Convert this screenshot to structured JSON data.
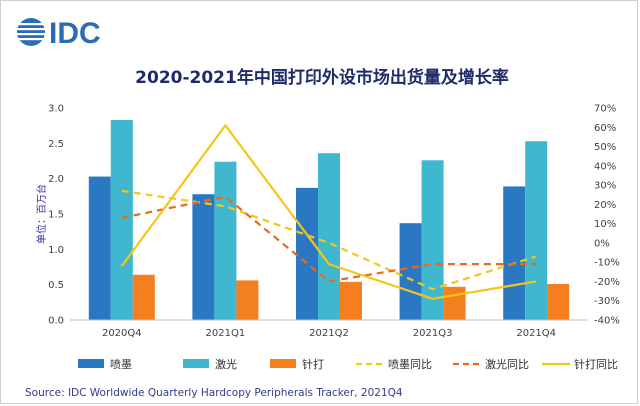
{
  "logo": {
    "text": "IDC"
  },
  "chart_data": {
    "type": "bar",
    "title": "2020-2021年中国打印外设市场出货量及增长率",
    "ylabel": "单位：百万台",
    "categories": [
      "2020Q4",
      "2021Q1",
      "2021Q2",
      "2021Q3",
      "2021Q4"
    ],
    "ylim": [
      0,
      3.0
    ],
    "y_ticks": [
      "0.0",
      "0.5",
      "1.0",
      "1.5",
      "2.0",
      "2.5",
      "3.0"
    ],
    "y2lim": [
      -40,
      70
    ],
    "y2_ticks": [
      "-40%",
      "-30%",
      "-20%",
      "-10%",
      "0%",
      "10%",
      "20%",
      "30%",
      "40%",
      "50%",
      "60%",
      "70%"
    ],
    "bar_series": [
      {
        "name": "喷墨",
        "color": "#2b78c2",
        "values": [
          2.03,
          1.78,
          1.87,
          1.37,
          1.89
        ]
      },
      {
        "name": "激光",
        "color": "#3fb8cf",
        "values": [
          2.83,
          2.24,
          2.36,
          2.26,
          2.53
        ]
      },
      {
        "name": "针打",
        "color": "#f47f1f",
        "values": [
          0.64,
          0.56,
          0.54,
          0.47,
          0.51
        ]
      }
    ],
    "line_series": [
      {
        "name": "喷墨同比",
        "color": "#f5c518",
        "dash": true,
        "values": [
          27,
          19,
          0,
          -24,
          -7
        ]
      },
      {
        "name": "激光同比",
        "color": "#ea6a1c",
        "dash": true,
        "values": [
          13,
          24,
          -20,
          -11,
          -11
        ]
      },
      {
        "name": "针打同比",
        "color": "#f5c518",
        "dash": false,
        "values": [
          -12,
          61,
          -11,
          -29,
          -20
        ]
      }
    ],
    "grid": false,
    "legend_position": "bottom"
  },
  "source": "Source:  IDC Worldwide Quarterly Hardcopy Peripherals Tracker, 2021Q4"
}
